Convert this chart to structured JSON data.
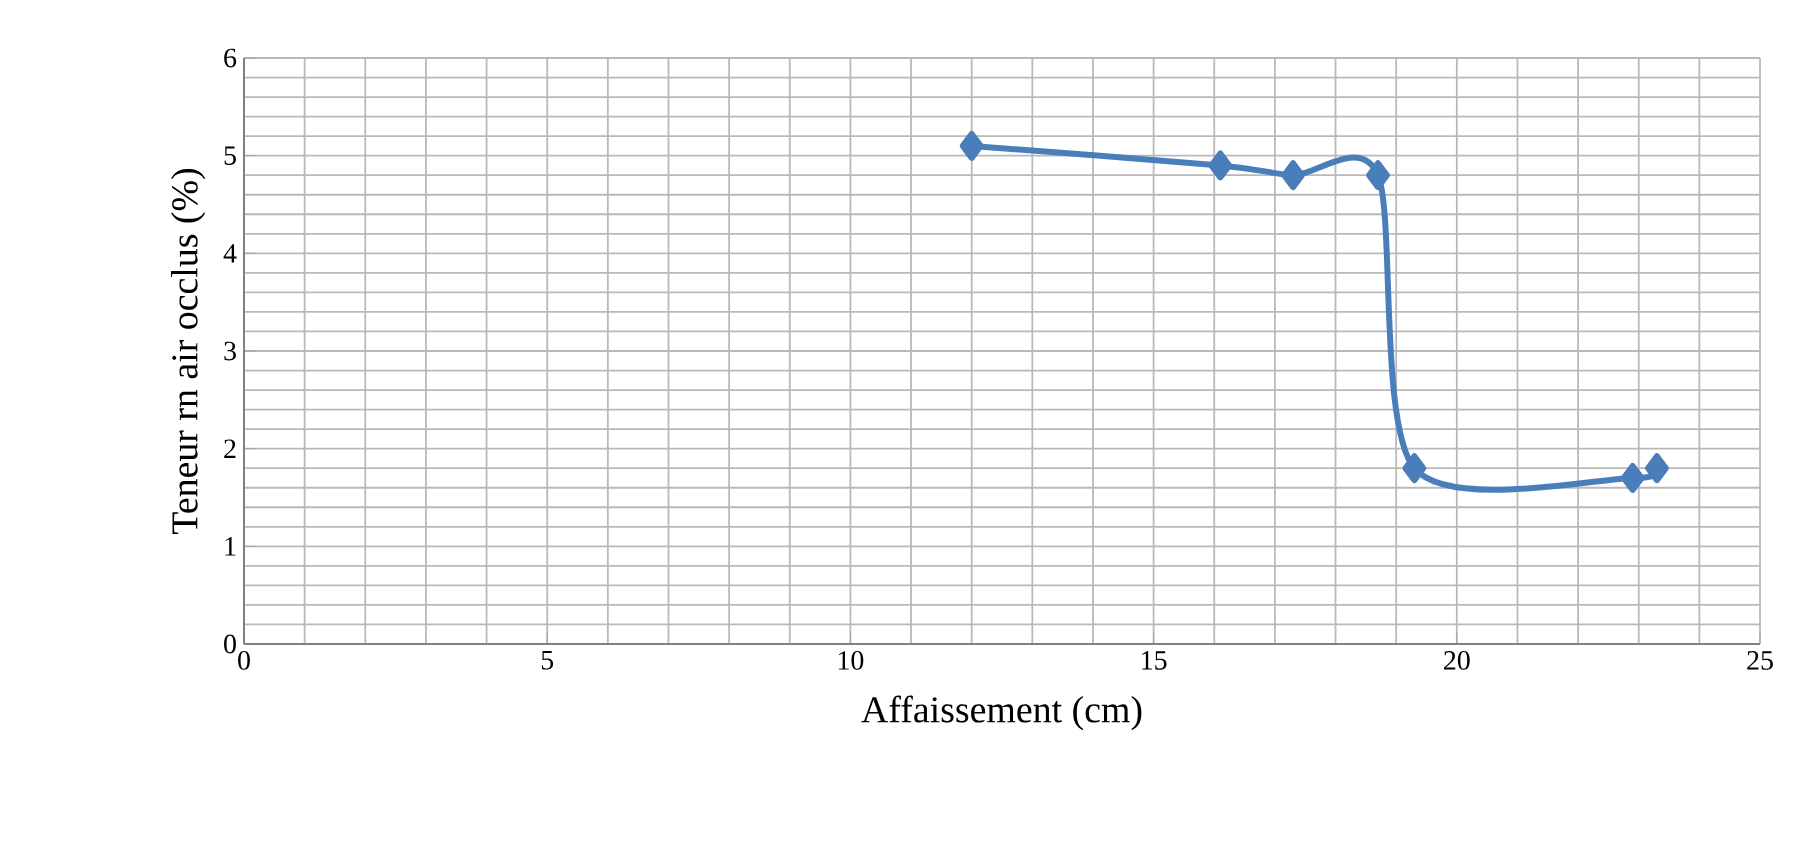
{
  "chart_data": {
    "type": "line",
    "xlabel": "Affaissement (cm)",
    "ylabel": "Teneur rn air occlus (%)",
    "x": [
      12,
      16.1,
      17.3,
      18.7,
      19.3,
      22.9,
      23.3
    ],
    "series": [
      {
        "color": "#4a7ebb",
        "values": [
          5.1,
          4.9,
          4.8,
          4.8,
          1.8,
          1.7,
          1.8
        ]
      }
    ],
    "xlim": [
      0,
      25
    ],
    "ylim": [
      0,
      6
    ],
    "xticks": [
      0,
      5,
      10,
      15,
      20,
      25
    ],
    "yticks": [
      0,
      1,
      2,
      3,
      4,
      5,
      6
    ],
    "grid": true,
    "marker": "diamond",
    "line_style": "solid"
  }
}
